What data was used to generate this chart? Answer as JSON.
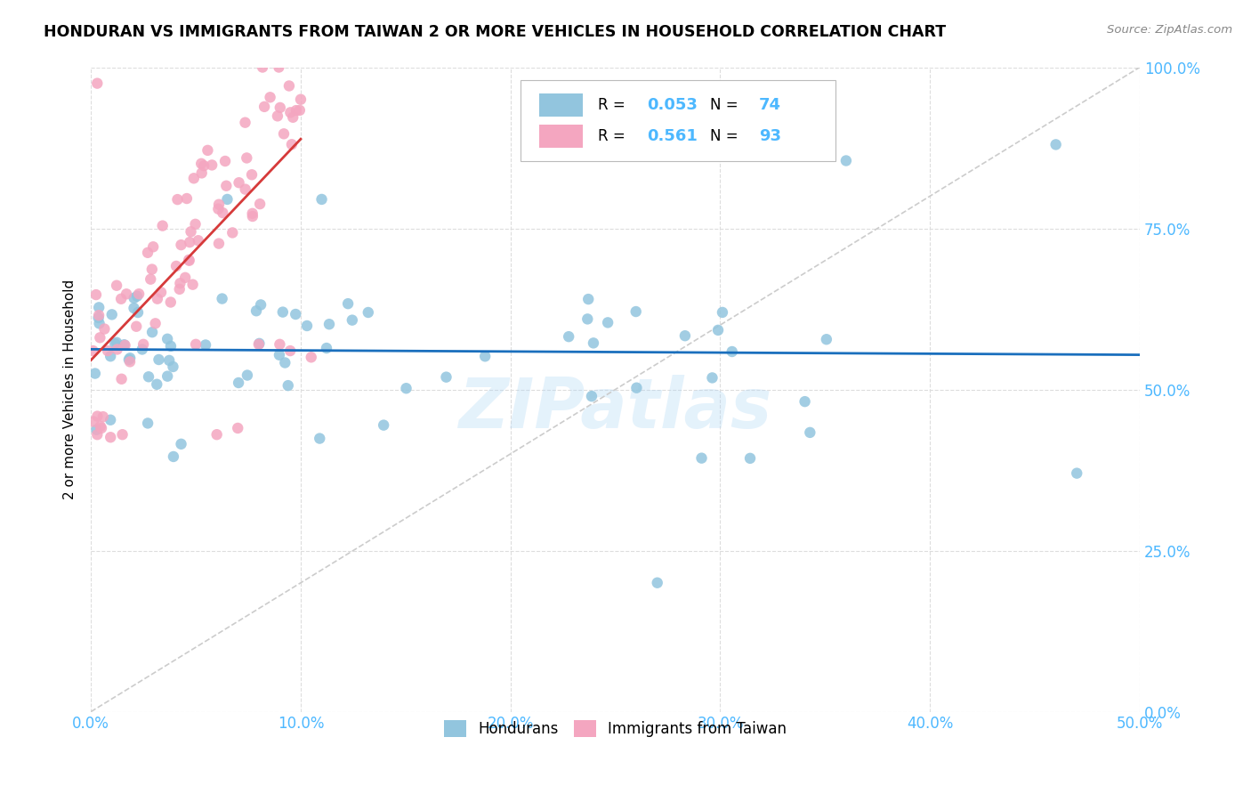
{
  "title": "HONDURAN VS IMMIGRANTS FROM TAIWAN 2 OR MORE VEHICLES IN HOUSEHOLD CORRELATION CHART",
  "source": "Source: ZipAtlas.com",
  "ylabel_label": "2 or more Vehicles in Household",
  "legend_label1": "Hondurans",
  "legend_label2": "Immigrants from Taiwan",
  "R1": "0.053",
  "N1": "74",
  "R2": "0.561",
  "N2": "93",
  "color_blue": "#92c5de",
  "color_pink": "#f4a6c0",
  "trendline_blue": "#1a6fbd",
  "trendline_pink": "#d63a3a",
  "trendline_diag": "#cccccc",
  "tick_color": "#4db8ff",
  "watermark": "ZIPatlas",
  "xlim": [
    0.0,
    0.5
  ],
  "ylim": [
    0.0,
    1.0
  ],
  "xtick_vals": [
    0.0,
    0.1,
    0.2,
    0.3,
    0.4,
    0.5
  ],
  "ytick_vals": [
    0.0,
    0.25,
    0.5,
    0.75,
    1.0
  ]
}
